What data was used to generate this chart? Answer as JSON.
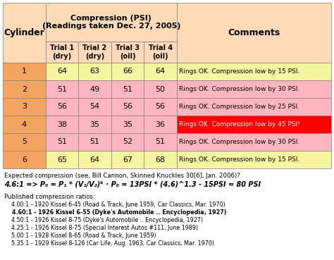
{
  "title_line1": "Compression (PSI)",
  "title_line2": "(Readings taken Dec. 27, 2005)",
  "col_headers": [
    "Cylinder",
    "Trial 1\n(dry)",
    "Trial 2\n(dry)",
    "Trial 3\n(oil)",
    "Trial 4\n(oil)",
    "Comments"
  ],
  "rows": [
    [
      1,
      64,
      63,
      66,
      64,
      "Rings OK. Compression low by 15 PSI."
    ],
    [
      2,
      51,
      49,
      51,
      50,
      "Rings OK. Compression low by 30 PSI."
    ],
    [
      3,
      56,
      54,
      56,
      56,
      "Rings OK. Compression low by 25 PSI."
    ],
    [
      4,
      38,
      35,
      35,
      36,
      "Rings OK. Compression low by 45 PSI!"
    ],
    [
      5,
      51,
      51,
      52,
      51,
      "Rings OK. Compression low by 30 PSI."
    ],
    [
      6,
      65,
      64,
      67,
      68,
      "Rings OK. Compression low by 15 PSI."
    ]
  ],
  "row_bg_colors": [
    "#f5f5a0",
    "#ffb6c1",
    "#ffb6c1",
    "#ffb6c1",
    "#ffb6c1",
    "#f5f5a0"
  ],
  "comment_bg_colors": [
    "#f5f5a0",
    "#ffb6c1",
    "#ffb6c1",
    "#ff0000",
    "#ffb6c1",
    "#f5f5a0"
  ],
  "comment_text_colors": [
    "#000000",
    "#000000",
    "#000000",
    "#ffffff",
    "#000000",
    "#000000"
  ],
  "header_bg": "#f4a460",
  "header_text": "#000000",
  "table_border": "#808080",
  "outer_bg": "#ffdab9",
  "note_line1": "Expected compression (see, Bill Cannon, Skinned Knuckles 30[6], Jan. 2006)?",
  "note_line2": "4.6:1 => P₀ = P₁ * (V₁/V₂)ᵏ · P₀ = 13PSI * (4.6)^1.3 - 15PSI = 80 PSI",
  "published_header": "Published compression ratios:",
  "published_lines": [
    "    4.00:1 - 1920 Kissel 6-45 (Road & Track, June 1959; Car Classics, Mar. 1970)",
    "    4.60:1 - 1926 Kissel 6-55 (Dyke's Automobile .. Encyclopedia, 1927)",
    "    4.50:1 - 1926 Kissel 8-75 (Dyke's Automobile .. Encyclopedia, 1927)",
    "    4.25:1 - 1926 Kissel 8-75 (Special Interest Autos #111, June 1989)",
    "    5.00:1 - 1928 Kissel 8-65 (Road & Track, June 1959)",
    "    5.35:1 - 1929 Kissel 8-126 (Car Life, Aug. 1963; Car Classics, Mar. 1970)"
  ],
  "bold_published_line": 1
}
